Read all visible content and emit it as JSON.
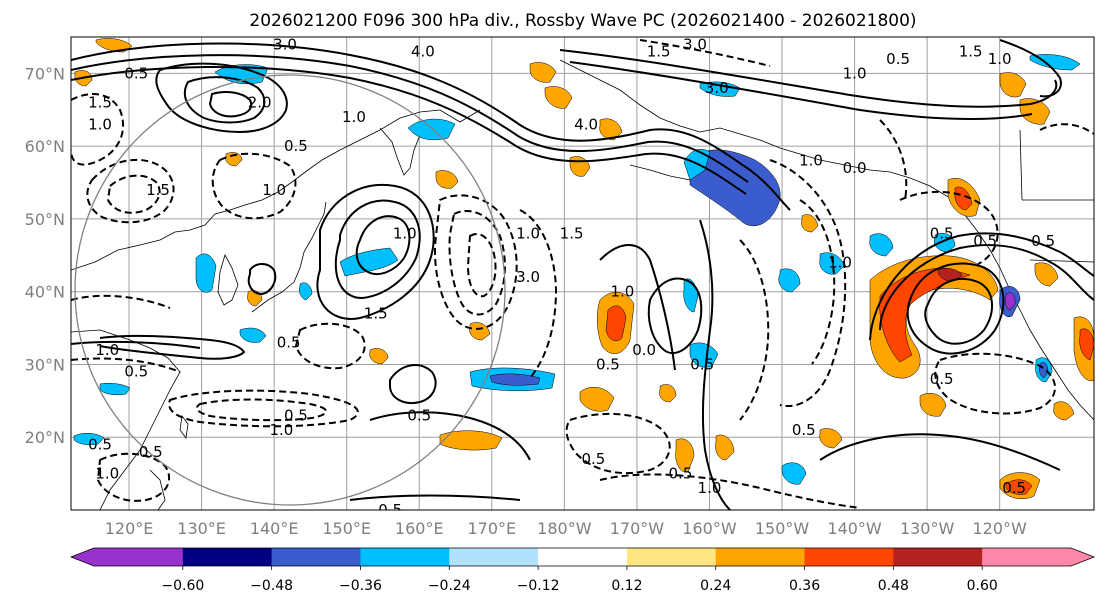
{
  "title": "2026021200 F096 300 hPa div., Rossby Wave PC (2026021400 - 2026021800)",
  "map": {
    "lon_range": [
      112,
      253
    ],
    "lat_range": [
      10,
      75
    ],
    "lat_ticks": [
      {
        "value": 70,
        "label": "70°N"
      },
      {
        "value": 60,
        "label": "60°N"
      },
      {
        "value": 50,
        "label": "50°N"
      },
      {
        "value": 40,
        "label": "40°N"
      },
      {
        "value": 30,
        "label": "30°N"
      },
      {
        "value": 20,
        "label": "20°N"
      }
    ],
    "lon_ticks": [
      {
        "value": 120,
        "label": "120°E"
      },
      {
        "value": 130,
        "label": "130°E"
      },
      {
        "value": 140,
        "label": "140°E"
      },
      {
        "value": 150,
        "label": "150°E"
      },
      {
        "value": 160,
        "label": "160°E"
      },
      {
        "value": 170,
        "label": "170°E"
      },
      {
        "value": 180,
        "label": "180°W"
      },
      {
        "value": 190,
        "label": "170°W"
      },
      {
        "value": 200,
        "label": "160°W"
      },
      {
        "value": 210,
        "label": "150°W"
      },
      {
        "value": 220,
        "label": "140°W"
      },
      {
        "value": 230,
        "label": "130°W"
      },
      {
        "value": 240,
        "label": "120°W"
      }
    ],
    "contour_labels": [
      {
        "lon": 141.5,
        "lat": 74,
        "text": "3.0"
      },
      {
        "lon": 160.5,
        "lat": 73,
        "text": "4.0"
      },
      {
        "lon": 121,
        "lat": 70,
        "text": "0.5"
      },
      {
        "lon": 116,
        "lat": 66,
        "text": "1.5"
      },
      {
        "lon": 116,
        "lat": 63,
        "text": "1.0"
      },
      {
        "lon": 138,
        "lat": 66,
        "text": "2.0"
      },
      {
        "lon": 143,
        "lat": 60,
        "text": "0.5"
      },
      {
        "lon": 151,
        "lat": 64,
        "text": "1.0"
      },
      {
        "lon": 124,
        "lat": 54,
        "text": "1.5"
      },
      {
        "lon": 140,
        "lat": 54,
        "text": "1.0"
      },
      {
        "lon": 183,
        "lat": 63,
        "text": "4.0"
      },
      {
        "lon": 193,
        "lat": 73,
        "text": "1.5"
      },
      {
        "lon": 198,
        "lat": 74,
        "text": "3.0"
      },
      {
        "lon": 201,
        "lat": 68,
        "text": "3.0"
      },
      {
        "lon": 236,
        "lat": 73,
        "text": "1.5"
      },
      {
        "lon": 240,
        "lat": 72,
        "text": "1.0"
      },
      {
        "lon": 220,
        "lat": 70,
        "text": "1.0"
      },
      {
        "lon": 226,
        "lat": 72,
        "text": "0.5"
      },
      {
        "lon": 214,
        "lat": 58,
        "text": "1.0"
      },
      {
        "lon": 220,
        "lat": 57,
        "text": "0.0"
      },
      {
        "lon": 238,
        "lat": 47,
        "text": "0.5"
      },
      {
        "lon": 246,
        "lat": 47,
        "text": "0.5"
      },
      {
        "lon": 181,
        "lat": 48,
        "text": "1.5"
      },
      {
        "lon": 175,
        "lat": 48,
        "text": "1.0"
      },
      {
        "lon": 158,
        "lat": 48,
        "text": "1.0"
      },
      {
        "lon": 154,
        "lat": 37,
        "text": "1.5"
      },
      {
        "lon": 175,
        "lat": 42,
        "text": "3.0"
      },
      {
        "lon": 188,
        "lat": 40,
        "text": "1.0"
      },
      {
        "lon": 191,
        "lat": 32,
        "text": "0.0"
      },
      {
        "lon": 199,
        "lat": 30,
        "text": "0.5"
      },
      {
        "lon": 186,
        "lat": 30,
        "text": "0.5"
      },
      {
        "lon": 142,
        "lat": 33,
        "text": "0.5"
      },
      {
        "lon": 117,
        "lat": 32,
        "text": "1.0"
      },
      {
        "lon": 121,
        "lat": 29,
        "text": "0.5"
      },
      {
        "lon": 143,
        "lat": 23,
        "text": "0.5"
      },
      {
        "lon": 141,
        "lat": 21,
        "text": "1.0"
      },
      {
        "lon": 160,
        "lat": 23,
        "text": "0.5"
      },
      {
        "lon": 116,
        "lat": 19,
        "text": "0.5"
      },
      {
        "lon": 123,
        "lat": 18,
        "text": "0.5"
      },
      {
        "lon": 117,
        "lat": 15,
        "text": "1.0"
      },
      {
        "lon": 184,
        "lat": 17,
        "text": "0.5"
      },
      {
        "lon": 196,
        "lat": 15,
        "text": "0.5"
      },
      {
        "lon": 200,
        "lat": 13,
        "text": "1.0"
      },
      {
        "lon": 156,
        "lat": 10,
        "text": "0.5"
      },
      {
        "lon": 213,
        "lat": 21,
        "text": "0.5"
      },
      {
        "lon": 232,
        "lat": 28,
        "text": "0.5"
      },
      {
        "lon": 242,
        "lat": 13,
        "text": "0.5"
      },
      {
        "lon": 232,
        "lat": 48,
        "text": "0.5"
      },
      {
        "lon": 218,
        "lat": 44,
        "text": "1.0"
      }
    ]
  },
  "colorbar": {
    "labels": [
      "−0.60",
      "−0.48",
      "−0.36",
      "−0.24",
      "−0.12",
      "0.12",
      "0.24",
      "0.36",
      "0.48",
      "0.60"
    ],
    "bounds": [
      -0.6,
      -0.48,
      -0.36,
      -0.24,
      -0.12,
      0.12,
      0.24,
      0.36,
      0.48,
      0.6
    ],
    "colors": [
      "#9932cc",
      "#000080",
      "#3a5ccc",
      "#00bfff",
      "#b0e2ff",
      "#ffffff",
      "#ffe680",
      "#ffa500",
      "#ff4500",
      "#b22222",
      "#ff88aa"
    ],
    "extend": "both"
  }
}
